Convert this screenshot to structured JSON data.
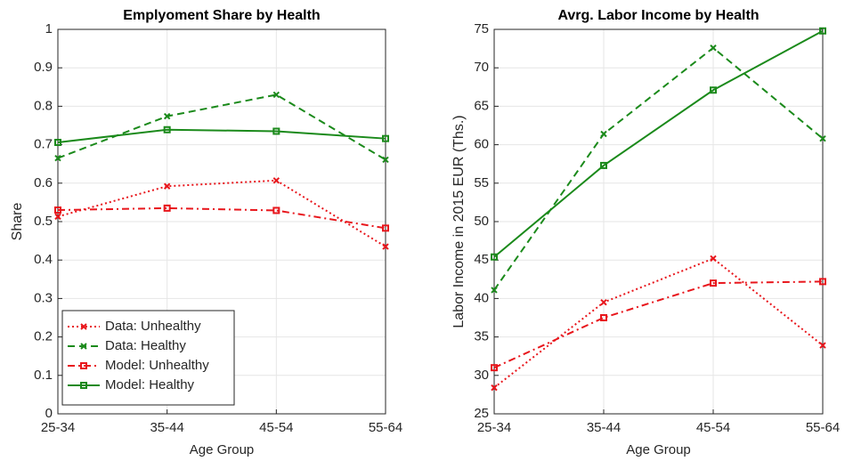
{
  "chart_data": [
    {
      "type": "line",
      "title": "Emplyoment Share by Health",
      "x_label": "Age Group",
      "y_label": "Share",
      "categories": [
        "25-34",
        "35-44",
        "45-54",
        "55-64"
      ],
      "ylim": [
        0,
        1
      ],
      "yticks": [
        0,
        0.1,
        0.2,
        0.3,
        0.4,
        0.5,
        0.6,
        0.7,
        0.8,
        0.9,
        1
      ],
      "grid": true,
      "legend": "lower left",
      "series": [
        {
          "name": "Data: Unhealthy",
          "color": "#e8161c",
          "line_style": "dotted",
          "marker": "x",
          "values": [
            0.513,
            0.592,
            0.607,
            0.435
          ]
        },
        {
          "name": "Data: Healthy",
          "color": "#1b8a1b",
          "line_style": "dashed",
          "marker": "x",
          "values": [
            0.665,
            0.774,
            0.83,
            0.661
          ]
        },
        {
          "name": "Model: Unhealthy",
          "color": "#e8161c",
          "line_style": "dashdot",
          "marker": "square",
          "values": [
            0.53,
            0.535,
            0.529,
            0.483
          ]
        },
        {
          "name": "Model: Healthy",
          "color": "#1b8a1b",
          "line_style": "solid",
          "marker": "square",
          "values": [
            0.706,
            0.739,
            0.735,
            0.716
          ]
        }
      ]
    },
    {
      "type": "line",
      "title": "Avrg. Labor Income by Health",
      "x_label": "Age Group",
      "y_label": "Labor Income in 2015 EUR (Ths.)",
      "categories": [
        "25-34",
        "35-44",
        "45-54",
        "55-64"
      ],
      "ylim": [
        25,
        75
      ],
      "yticks": [
        25,
        30,
        35,
        40,
        45,
        50,
        55,
        60,
        65,
        70,
        75
      ],
      "grid": true,
      "series": [
        {
          "color": "#e8161c",
          "line_style": "dotted",
          "marker": "x",
          "values": [
            28.4,
            39.5,
            45.2,
            33.9
          ]
        },
        {
          "color": "#1b8a1b",
          "line_style": "dashed",
          "marker": "x",
          "values": [
            41.1,
            61.4,
            72.6,
            60.8
          ]
        },
        {
          "color": "#e8161c",
          "line_style": "dashdot",
          "marker": "square",
          "values": [
            31.0,
            37.5,
            42.0,
            42.2
          ]
        },
        {
          "color": "#1b8a1b",
          "line_style": "solid",
          "marker": "square",
          "values": [
            45.4,
            57.3,
            67.1,
            74.8
          ]
        }
      ]
    }
  ]
}
